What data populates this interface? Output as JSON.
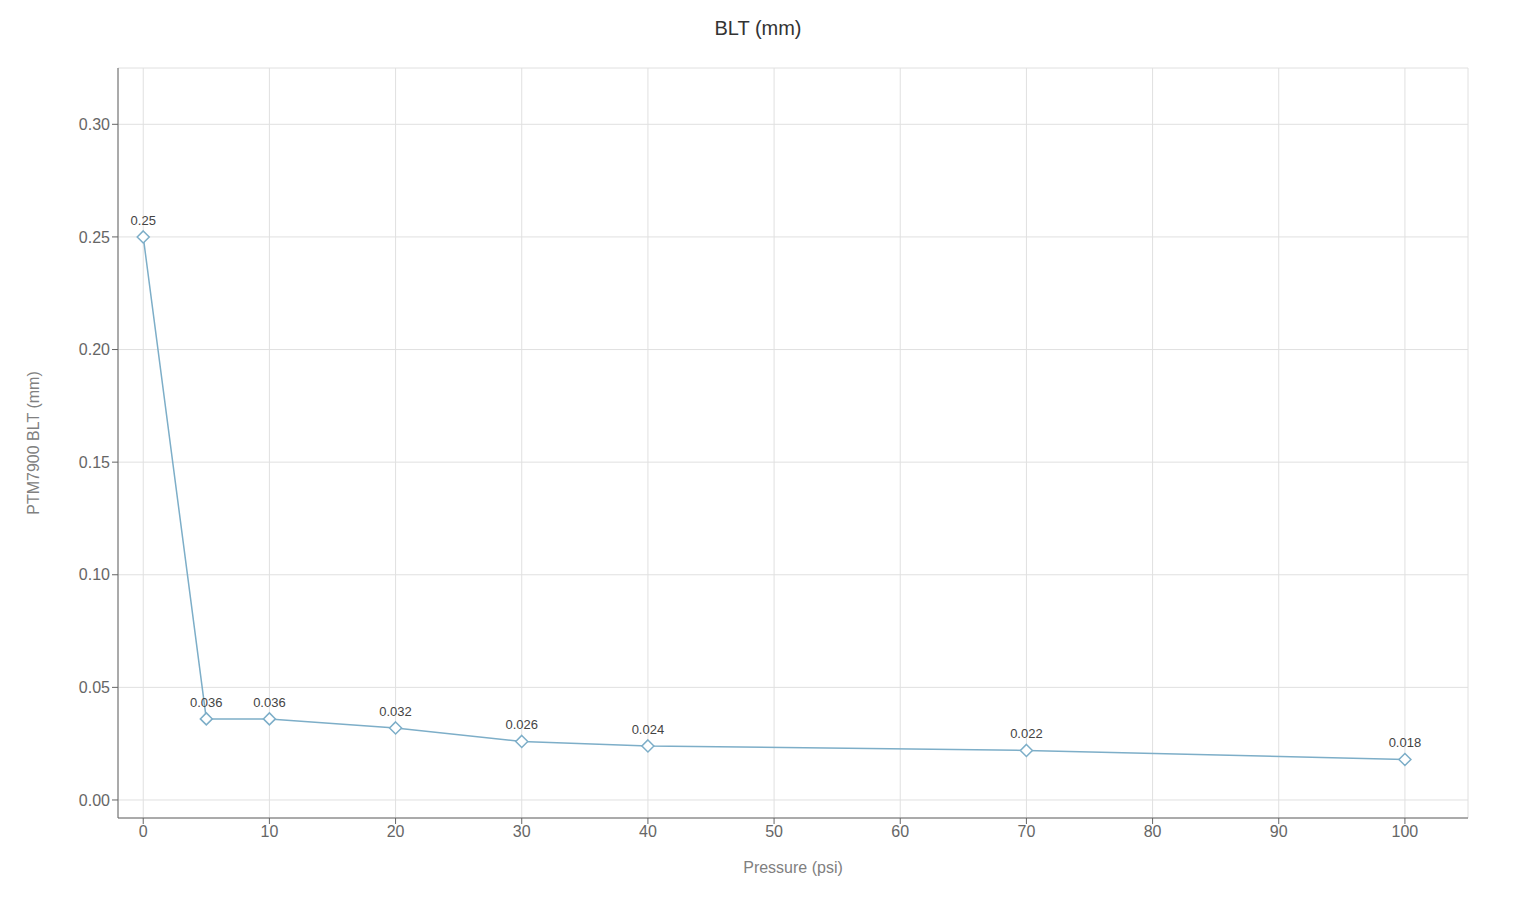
{
  "chart_data": {
    "type": "line",
    "title": "BLT (mm)",
    "xlabel": "Pressure (psi)",
    "ylabel": "PTM7900 BLT (mm)",
    "x": [
      0,
      5,
      10,
      20,
      30,
      40,
      70,
      100
    ],
    "values": [
      0.25,
      0.036,
      0.036,
      0.032,
      0.026,
      0.024,
      0.022,
      0.018
    ],
    "color": "#7daec8",
    "marker": "diamond",
    "xlim": [
      -2,
      105
    ],
    "ylim": [
      -0.008,
      0.325
    ],
    "xticks": [
      0,
      10,
      20,
      30,
      40,
      50,
      60,
      70,
      80,
      90,
      100
    ],
    "yticks": [
      {
        "value": 0,
        "label": "0.00"
      },
      0.05,
      {
        "value": 0.1,
        "label": "0.10"
      },
      0.15,
      {
        "value": 0.2,
        "label": "0.20"
      },
      0.25,
      {
        "value": 0.3,
        "label": "0.30"
      }
    ],
    "grid": true,
    "data_labels": true
  }
}
